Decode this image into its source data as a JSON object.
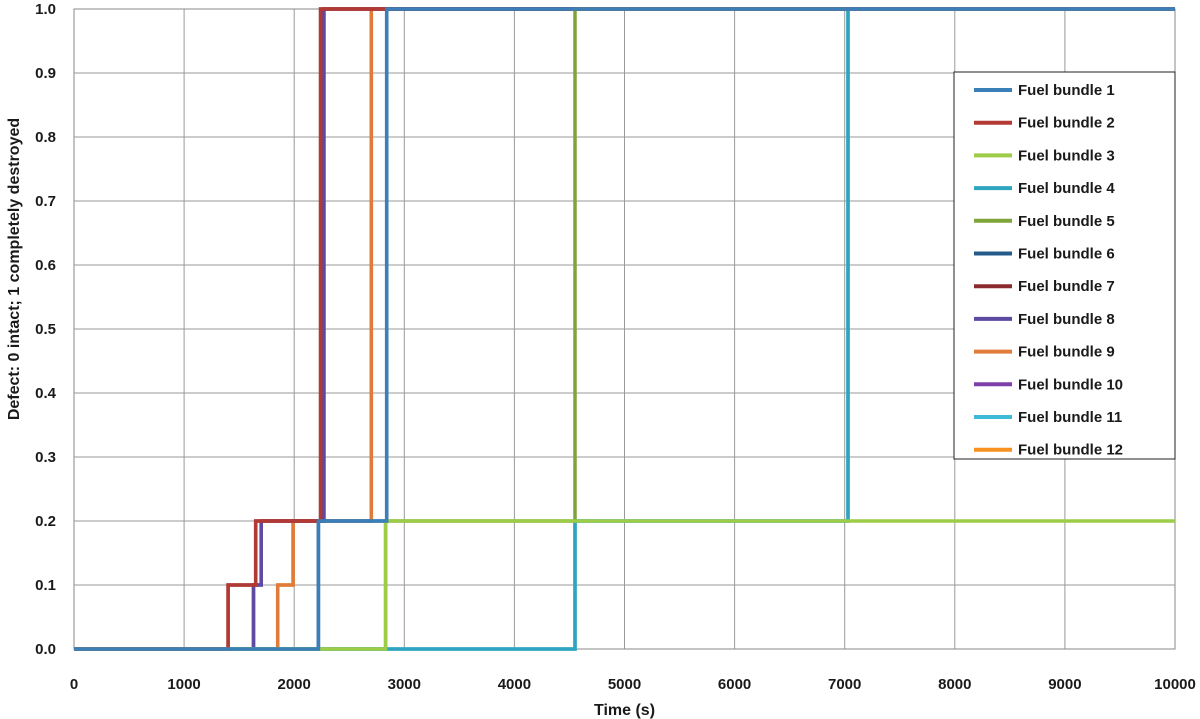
{
  "chart_data": {
    "type": "line",
    "step": true,
    "title": "",
    "xlabel": "Time (s)",
    "ylabel": "Defect: 0 intact; 1 completely destroyed",
    "xlim": [
      0,
      10000
    ],
    "ylim": [
      0,
      1.0
    ],
    "xticks": [
      "0",
      "1000",
      "2000",
      "3000",
      "4000",
      "5000",
      "6000",
      "7000",
      "8000",
      "9000",
      "10000"
    ],
    "yticks": [
      "0.0",
      "0.1",
      "0.2",
      "0.3",
      "0.4",
      "0.5",
      "0.6",
      "0.7",
      "0.8",
      "0.9",
      "1.0"
    ],
    "grid": true,
    "legend_position": "right",
    "series": [
      {
        "name": "Fuel bundle 1",
        "color": "#3b7fb8",
        "x": [
          0,
          2220,
          2220,
          2840,
          2840,
          10000
        ],
        "y": [
          0,
          0,
          0.2,
          0.2,
          1.0,
          1.0
        ]
      },
      {
        "name": "Fuel bundle 2",
        "color": "#b33a34",
        "x": [
          0,
          1400,
          1400,
          1650,
          1650,
          2240,
          2240,
          10000
        ],
        "y": [
          0,
          0,
          0.1,
          0.1,
          0.2,
          0.2,
          1.0,
          1.0
        ]
      },
      {
        "name": "Fuel bundle 3",
        "color": "#9ccc48",
        "x": [
          0,
          2830,
          2830,
          7040,
          7040,
          10000
        ],
        "y": [
          0,
          0,
          0.2,
          0.2,
          0.2,
          0.2
        ]
      },
      {
        "name": "Fuel bundle 4",
        "color": "#2ea5c0",
        "x": [
          0,
          4550,
          4550,
          7030,
          7030,
          10000
        ],
        "y": [
          0,
          0,
          0.2,
          0.2,
          1.0,
          1.0
        ]
      },
      {
        "name": "Fuel bundle 5",
        "color": "#7ea43a",
        "x": [
          0,
          2830,
          2830,
          4550,
          4550,
          10000
        ],
        "y": [
          0,
          0,
          0.2,
          0.2,
          1.0,
          1.0
        ]
      },
      {
        "name": "Fuel bundle 6",
        "color": "#245b8c",
        "x": [
          0,
          2220,
          2220,
          2840,
          2840,
          10000
        ],
        "y": [
          0,
          0,
          0.2,
          0.2,
          1.0,
          1.0
        ]
      },
      {
        "name": "Fuel bundle 7",
        "color": "#8b2a2e",
        "x": [
          0,
          1400,
          1400,
          1650,
          1650,
          2240,
          2240,
          10000
        ],
        "y": [
          0,
          0,
          0.1,
          0.1,
          0.2,
          0.2,
          1.0,
          1.0
        ]
      },
      {
        "name": "Fuel bundle 8",
        "color": "#5e4aa0",
        "x": [
          0,
          1630,
          1630,
          1700,
          1700,
          2270,
          2270,
          10000
        ],
        "y": [
          0,
          0,
          0.1,
          0.1,
          0.2,
          0.2,
          1.0,
          1.0
        ]
      },
      {
        "name": "Fuel bundle 9",
        "color": "#e07b39",
        "x": [
          0,
          1850,
          1850,
          1990,
          1990,
          2700,
          2700,
          10000
        ],
        "y": [
          0,
          0,
          0.1,
          0.1,
          0.2,
          0.2,
          1.0,
          1.0
        ]
      },
      {
        "name": "Fuel bundle 10",
        "color": "#7e3fa8",
        "x": [
          0,
          1630,
          1630,
          1700,
          1700,
          2270,
          2270,
          2700,
          2700,
          10000
        ],
        "y": [
          0,
          0,
          0.1,
          0.1,
          0.2,
          0.2,
          1.0,
          1.0,
          1.0,
          1.0
        ]
      },
      {
        "name": "Fuel bundle 11",
        "color": "#3dbad6",
        "x": [
          0,
          4550,
          4550,
          7030,
          7030,
          10000
        ],
        "y": [
          0,
          0,
          0.2,
          0.2,
          1.0,
          1.0
        ]
      },
      {
        "name": "Fuel bundle 12",
        "color": "#f7921e",
        "x": [
          0,
          1850,
          1850,
          1990,
          1990,
          2700,
          2700,
          10000
        ],
        "y": [
          0,
          0,
          0.1,
          0.1,
          0.2,
          0.2,
          1.0,
          1.0
        ]
      }
    ]
  }
}
